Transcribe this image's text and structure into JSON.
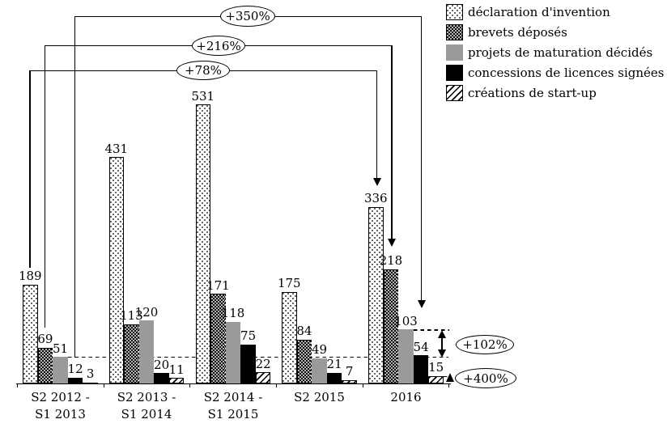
{
  "chart_data": {
    "type": "bar",
    "title": "",
    "categories": [
      [
        "S2 2012 -",
        "S1 2013"
      ],
      [
        "S2 2013 -",
        "S1 2014"
      ],
      [
        "S2 2014 -",
        "S1 2015"
      ],
      [
        "S2 2015"
      ],
      [
        "2016"
      ]
    ],
    "series": [
      {
        "name": "déclaration d'invention",
        "pattern": "dots",
        "values": [
          189,
          431,
          531,
          175,
          336
        ]
      },
      {
        "name": "brevets déposés",
        "pattern": "checker",
        "values": [
          69,
          113,
          171,
          84,
          218
        ]
      },
      {
        "name": "projets de maturation décidés",
        "pattern": "solid-gray",
        "values": [
          51,
          120,
          118,
          49,
          103
        ]
      },
      {
        "name": "concessions de licences signées",
        "pattern": "solid-black",
        "values": [
          12,
          20,
          75,
          21,
          54
        ]
      },
      {
        "name": "créations de start-up",
        "pattern": "diagonal-stripes",
        "values": [
          3,
          11,
          22,
          7,
          15
        ]
      }
    ],
    "annotations": {
      "top": [
        {
          "label": "+350%"
        },
        {
          "label": "+216%"
        },
        {
          "label": "+78%"
        }
      ],
      "right": [
        {
          "label": "+102%"
        },
        {
          "label": "+400%"
        }
      ]
    },
    "legend_position": "top-right",
    "grid": false,
    "y_axis": "hidden",
    "colors": {
      "bar_gray": "#9a9a9a",
      "bar_black": "#000000",
      "line": "#000000",
      "background": "#ffffff"
    }
  }
}
